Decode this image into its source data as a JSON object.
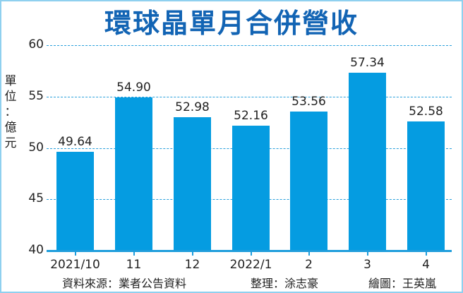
{
  "title": "環球晶單月合併營收",
  "unit_label": [
    "單",
    "位",
    "：",
    "億",
    "元"
  ],
  "footer": {
    "source": "資料來源：業者公告資料",
    "editor": "整理：涂志豪",
    "illustrator": "繪圖：王英嵐"
  },
  "colors": {
    "bar": "#059ce1",
    "title": "#1264b4",
    "grid": "#2aa0dc",
    "border": "#8fd0ef"
  },
  "chart_data": {
    "type": "bar",
    "title": "環球晶單月合併營收",
    "xlabel": "",
    "ylabel": "單位：億元",
    "categories": [
      "2021/10",
      "11",
      "12",
      "2022/1",
      "2",
      "3",
      "4"
    ],
    "values": [
      49.64,
      54.9,
      52.98,
      52.16,
      53.56,
      57.34,
      52.58
    ],
    "value_labels": [
      "49.64",
      "54.90",
      "52.98",
      "52.16",
      "53.56",
      "57.34",
      "52.58"
    ],
    "ylim": [
      40,
      60
    ],
    "yticks": [
      "60",
      "55",
      "50",
      "45",
      "40"
    ],
    "grid": true,
    "legend": null
  }
}
